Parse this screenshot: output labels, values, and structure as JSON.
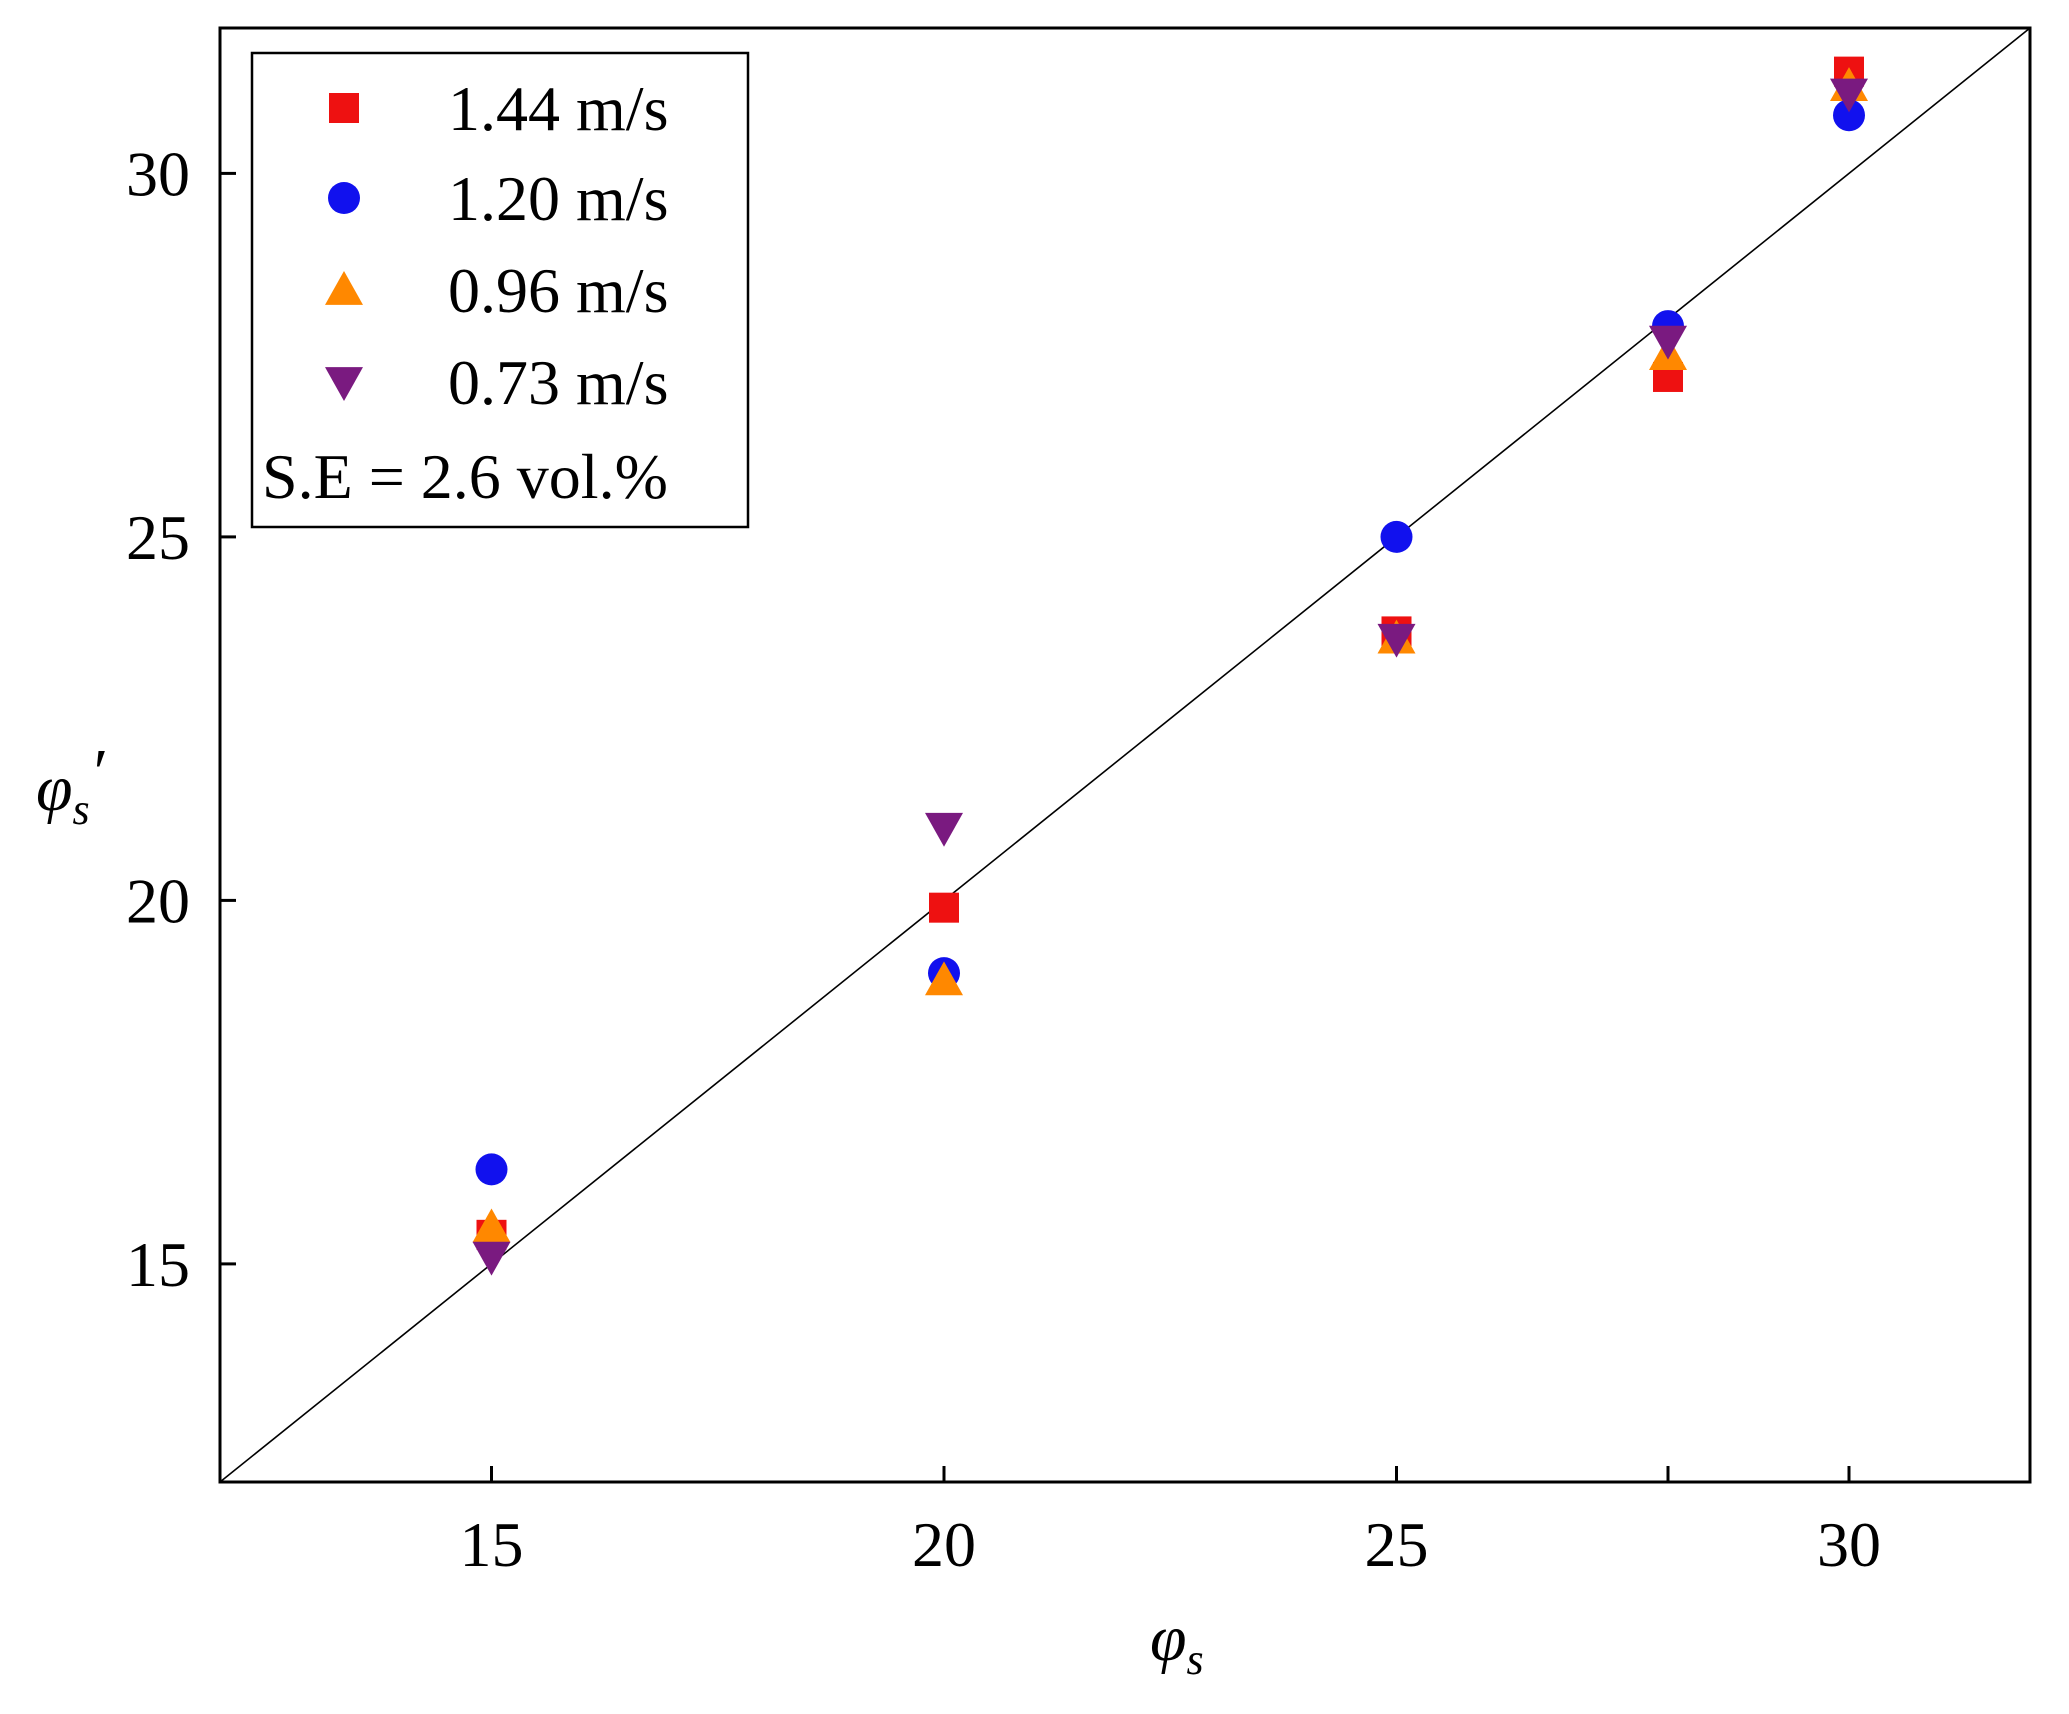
{
  "chart_data": {
    "type": "scatter",
    "title": "",
    "xlabel": {
      "symbol": "φ",
      "subscript": "s",
      "prime": ""
    },
    "ylabel": {
      "symbol": "φ",
      "subscript": "s",
      "prime": "′"
    },
    "xlim": [
      12,
      32
    ],
    "ylim": [
      12,
      32
    ],
    "xticks": [
      15,
      20,
      25,
      28,
      30
    ],
    "xtick_labels": [
      "15",
      "20",
      "25",
      "",
      "30"
    ],
    "yticks": [
      15,
      20,
      25,
      30
    ],
    "ytick_labels": [
      "15",
      "20",
      "25",
      "30"
    ],
    "grid": false,
    "reference_line": {
      "type": "y=x",
      "color": "#000000"
    },
    "legend": {
      "position": "top-left",
      "note": "S.E = 2.6 vol.%"
    },
    "series": [
      {
        "name": "1.44 m/s",
        "marker": "square",
        "color": "#ee1111",
        "x": [
          15,
          20,
          25,
          28,
          30
        ],
        "y": [
          15.4,
          19.9,
          23.7,
          27.2,
          31.4
        ]
      },
      {
        "name": "1.20 m/s",
        "marker": "circle",
        "color": "#1111ee",
        "x": [
          15,
          20,
          25,
          28,
          30
        ],
        "y": [
          16.3,
          19.0,
          25.0,
          27.9,
          30.8
        ]
      },
      {
        "name": "0.96 m/s",
        "marker": "triangle-up",
        "color": "#ff8800",
        "x": [
          15,
          20,
          25,
          28,
          30
        ],
        "y": [
          15.5,
          18.9,
          23.6,
          27.5,
          31.2
        ]
      },
      {
        "name": "0.73 m/s",
        "marker": "triangle-down",
        "color": "#7a1a80",
        "x": [
          15,
          20,
          25,
          28,
          30
        ],
        "y": [
          15.1,
          21.0,
          23.6,
          27.7,
          31.1
        ]
      }
    ]
  }
}
